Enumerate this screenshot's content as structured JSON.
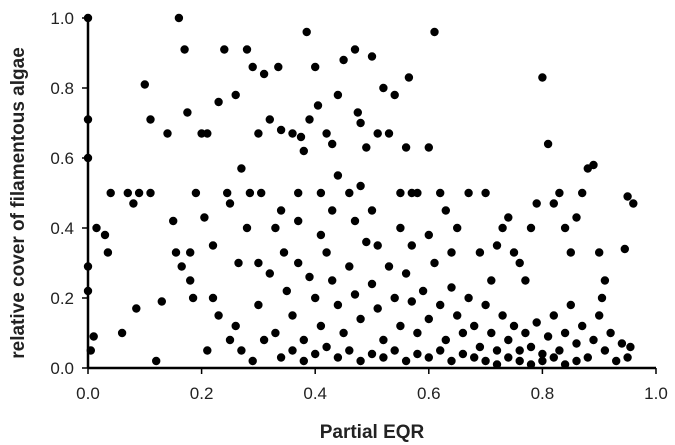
{
  "chart_data": {
    "type": "scatter",
    "xlabel": "Partial EQR",
    "ylabel": "relative cover of filamentous algae",
    "xlim": [
      0,
      1
    ],
    "ylim": [
      0,
      1
    ],
    "x_ticks": [
      "0.0",
      "0.2",
      "0.4",
      "0.6",
      "0.8",
      "1.0"
    ],
    "y_ticks": [
      "0.0",
      "0.2",
      "0.4",
      "0.6",
      "0.8",
      "1.0"
    ],
    "grid": false,
    "legend": "none",
    "marker_color": "#000000",
    "points": [
      [
        0.0,
        1.0
      ],
      [
        0.0,
        0.71
      ],
      [
        0.0,
        0.6
      ],
      [
        0.0,
        0.29
      ],
      [
        0.0,
        0.22
      ],
      [
        0.005,
        0.05
      ],
      [
        0.01,
        0.09
      ],
      [
        0.015,
        0.4
      ],
      [
        0.03,
        0.38
      ],
      [
        0.035,
        0.33
      ],
      [
        0.04,
        0.5
      ],
      [
        0.06,
        0.1
      ],
      [
        0.07,
        0.5
      ],
      [
        0.08,
        0.47
      ],
      [
        0.09,
        0.5
      ],
      [
        0.085,
        0.17
      ],
      [
        0.1,
        0.81
      ],
      [
        0.11,
        0.71
      ],
      [
        0.11,
        0.5
      ],
      [
        0.12,
        0.02
      ],
      [
        0.13,
        0.19
      ],
      [
        0.14,
        0.67
      ],
      [
        0.15,
        0.42
      ],
      [
        0.155,
        0.33
      ],
      [
        0.16,
        1.0
      ],
      [
        0.165,
        0.29
      ],
      [
        0.17,
        0.91
      ],
      [
        0.175,
        0.73
      ],
      [
        0.18,
        0.33
      ],
      [
        0.18,
        0.25
      ],
      [
        0.185,
        0.2
      ],
      [
        0.19,
        0.5
      ],
      [
        0.2,
        0.67
      ],
      [
        0.205,
        0.43
      ],
      [
        0.21,
        0.67
      ],
      [
        0.21,
        0.05
      ],
      [
        0.22,
        0.2
      ],
      [
        0.23,
        0.76
      ],
      [
        0.24,
        0.91
      ],
      [
        0.245,
        0.5
      ],
      [
        0.25,
        0.47
      ],
      [
        0.26,
        0.78
      ],
      [
        0.265,
        0.3
      ],
      [
        0.27,
        0.57
      ],
      [
        0.28,
        0.91
      ],
      [
        0.285,
        0.5
      ],
      [
        0.29,
        0.86
      ],
      [
        0.3,
        0.67
      ],
      [
        0.305,
        0.5
      ],
      [
        0.31,
        0.84
      ],
      [
        0.32,
        0.71
      ],
      [
        0.33,
        0.4
      ],
      [
        0.335,
        0.86
      ],
      [
        0.34,
        0.68
      ],
      [
        0.345,
        0.33
      ],
      [
        0.36,
        0.67
      ],
      [
        0.37,
        0.5
      ],
      [
        0.375,
        0.66
      ],
      [
        0.38,
        0.62
      ],
      [
        0.385,
        0.96
      ],
      [
        0.39,
        0.71
      ],
      [
        0.4,
        0.86
      ],
      [
        0.405,
        0.75
      ],
      [
        0.41,
        0.5
      ],
      [
        0.42,
        0.67
      ],
      [
        0.43,
        0.64
      ],
      [
        0.44,
        0.78
      ],
      [
        0.45,
        0.88
      ],
      [
        0.46,
        0.5
      ],
      [
        0.47,
        0.91
      ],
      [
        0.475,
        0.73
      ],
      [
        0.48,
        0.7
      ],
      [
        0.49,
        0.63
      ],
      [
        0.5,
        0.89
      ],
      [
        0.51,
        0.67
      ],
      [
        0.52,
        0.8
      ],
      [
        0.53,
        0.67
      ],
      [
        0.54,
        0.78
      ],
      [
        0.55,
        0.5
      ],
      [
        0.56,
        0.63
      ],
      [
        0.565,
        0.83
      ],
      [
        0.57,
        0.5
      ],
      [
        0.58,
        0.5
      ],
      [
        0.6,
        0.63
      ],
      [
        0.61,
        0.96
      ],
      [
        0.62,
        0.5
      ],
      [
        0.63,
        0.45
      ],
      [
        0.64,
        0.33
      ],
      [
        0.65,
        0.4
      ],
      [
        0.67,
        0.5
      ],
      [
        0.69,
        0.33
      ],
      [
        0.7,
        0.5
      ],
      [
        0.71,
        0.25
      ],
      [
        0.72,
        0.35
      ],
      [
        0.73,
        0.4
      ],
      [
        0.74,
        0.43
      ],
      [
        0.75,
        0.33
      ],
      [
        0.76,
        0.3
      ],
      [
        0.77,
        0.25
      ],
      [
        0.78,
        0.4
      ],
      [
        0.79,
        0.47
      ],
      [
        0.8,
        0.83
      ],
      [
        0.81,
        0.64
      ],
      [
        0.82,
        0.47
      ],
      [
        0.83,
        0.5
      ],
      [
        0.84,
        0.4
      ],
      [
        0.85,
        0.33
      ],
      [
        0.86,
        0.43
      ],
      [
        0.87,
        0.5
      ],
      [
        0.88,
        0.57
      ],
      [
        0.89,
        0.58
      ],
      [
        0.9,
        0.33
      ],
      [
        0.905,
        0.2
      ],
      [
        0.91,
        0.25
      ],
      [
        0.94,
        0.07
      ],
      [
        0.945,
        0.34
      ],
      [
        0.95,
        0.49
      ],
      [
        0.96,
        0.47
      ],
      [
        0.95,
        0.03
      ],
      [
        0.955,
        0.06
      ],
      [
        0.22,
        0.35
      ],
      [
        0.26,
        0.12
      ],
      [
        0.28,
        0.4
      ],
      [
        0.3,
        0.18
      ],
      [
        0.32,
        0.27
      ],
      [
        0.33,
        0.1
      ],
      [
        0.35,
        0.22
      ],
      [
        0.36,
        0.15
      ],
      [
        0.37,
        0.3
      ],
      [
        0.38,
        0.08
      ],
      [
        0.39,
        0.26
      ],
      [
        0.4,
        0.2
      ],
      [
        0.41,
        0.12
      ],
      [
        0.42,
        0.33
      ],
      [
        0.43,
        0.25
      ],
      [
        0.44,
        0.18
      ],
      [
        0.45,
        0.1
      ],
      [
        0.46,
        0.29
      ],
      [
        0.47,
        0.21
      ],
      [
        0.48,
        0.14
      ],
      [
        0.49,
        0.36
      ],
      [
        0.5,
        0.24
      ],
      [
        0.51,
        0.17
      ],
      [
        0.52,
        0.08
      ],
      [
        0.53,
        0.29
      ],
      [
        0.54,
        0.2
      ],
      [
        0.55,
        0.12
      ],
      [
        0.56,
        0.27
      ],
      [
        0.57,
        0.19
      ],
      [
        0.58,
        0.1
      ],
      [
        0.59,
        0.22
      ],
      [
        0.6,
        0.14
      ],
      [
        0.61,
        0.3
      ],
      [
        0.62,
        0.18
      ],
      [
        0.63,
        0.08
      ],
      [
        0.64,
        0.23
      ],
      [
        0.65,
        0.15
      ],
      [
        0.66,
        0.1
      ],
      [
        0.67,
        0.2
      ],
      [
        0.68,
        0.12
      ],
      [
        0.69,
        0.06
      ],
      [
        0.7,
        0.18
      ],
      [
        0.71,
        0.1
      ],
      [
        0.72,
        0.05
      ],
      [
        0.73,
        0.15
      ],
      [
        0.74,
        0.08
      ],
      [
        0.75,
        0.12
      ],
      [
        0.76,
        0.05
      ],
      [
        0.77,
        0.1
      ],
      [
        0.78,
        0.06
      ],
      [
        0.79,
        0.13
      ],
      [
        0.8,
        0.04
      ],
      [
        0.81,
        0.09
      ],
      [
        0.82,
        0.15
      ],
      [
        0.83,
        0.05
      ],
      [
        0.84,
        0.1
      ],
      [
        0.85,
        0.18
      ],
      [
        0.86,
        0.07
      ],
      [
        0.87,
        0.12
      ],
      [
        0.88,
        0.03
      ],
      [
        0.89,
        0.08
      ],
      [
        0.9,
        0.15
      ],
      [
        0.91,
        0.05
      ],
      [
        0.92,
        0.1
      ],
      [
        0.93,
        0.02
      ],
      [
        0.27,
        0.05
      ],
      [
        0.29,
        0.02
      ],
      [
        0.31,
        0.08
      ],
      [
        0.34,
        0.03
      ],
      [
        0.36,
        0.05
      ],
      [
        0.38,
        0.02
      ],
      [
        0.4,
        0.04
      ],
      [
        0.42,
        0.06
      ],
      [
        0.44,
        0.03
      ],
      [
        0.46,
        0.05
      ],
      [
        0.48,
        0.02
      ],
      [
        0.5,
        0.04
      ],
      [
        0.52,
        0.03
      ],
      [
        0.54,
        0.05
      ],
      [
        0.56,
        0.02
      ],
      [
        0.58,
        0.04
      ],
      [
        0.6,
        0.03
      ],
      [
        0.62,
        0.05
      ],
      [
        0.64,
        0.02
      ],
      [
        0.66,
        0.04
      ],
      [
        0.68,
        0.03
      ],
      [
        0.7,
        0.02
      ],
      [
        0.72,
        0.01
      ],
      [
        0.74,
        0.03
      ],
      [
        0.76,
        0.02
      ],
      [
        0.78,
        0.01
      ],
      [
        0.8,
        0.02
      ],
      [
        0.82,
        0.03
      ],
      [
        0.84,
        0.01
      ],
      [
        0.86,
        0.02
      ],
      [
        0.23,
        0.15
      ],
      [
        0.25,
        0.08
      ],
      [
        0.3,
        0.3
      ],
      [
        0.34,
        0.45
      ],
      [
        0.37,
        0.42
      ],
      [
        0.41,
        0.38
      ],
      [
        0.43,
        0.45
      ],
      [
        0.47,
        0.42
      ],
      [
        0.51,
        0.35
      ],
      [
        0.55,
        0.4
      ],
      [
        0.57,
        0.35
      ],
      [
        0.6,
        0.38
      ],
      [
        0.44,
        0.55
      ],
      [
        0.48,
        0.52
      ],
      [
        0.5,
        0.45
      ]
    ]
  }
}
